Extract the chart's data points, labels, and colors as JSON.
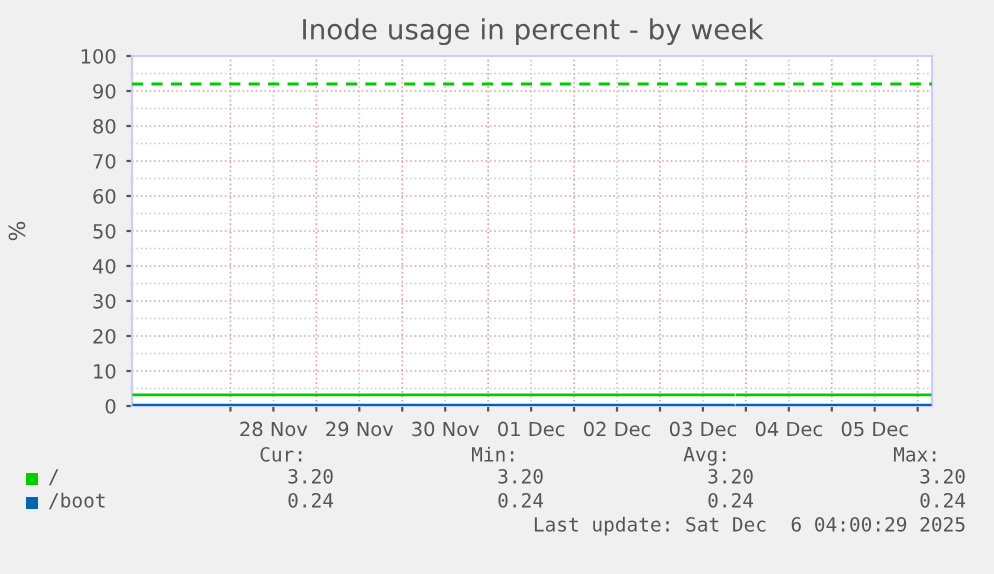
{
  "chart_data": {
    "type": "line",
    "title": "Inode usage in percent - by week",
    "ylabel": "%",
    "x": [
      "2025-11-26T21:00",
      "2025-12-03T20:30",
      "2025-12-03T21:00",
      "2025-12-03T21:30",
      "2025-12-06T03:30"
    ],
    "series": [
      {
        "name": "/",
        "color": "#00cc00",
        "values": [
          3.2,
          3.2,
          null,
          3.2,
          3.2
        ]
      },
      {
        "name": "/boot",
        "color": "#0066b3",
        "values": [
          0.24,
          0.24,
          null,
          0.24,
          0.24
        ]
      }
    ],
    "xlim": [
      "2025-11-26T20:30",
      "2025-12-06T04:00"
    ],
    "xticks": [
      {
        "value": "2025-11-28T00:00",
        "label": null
      },
      {
        "value": "2025-11-28T12:00",
        "label": "28 Nov"
      },
      {
        "value": "2025-11-29T00:00",
        "label": null
      },
      {
        "value": "2025-11-29T12:00",
        "label": "29 Nov"
      },
      {
        "value": "2025-11-30T00:00",
        "label": null
      },
      {
        "value": "2025-11-30T12:00",
        "label": "30 Nov"
      },
      {
        "value": "2025-12-01T00:00",
        "label": null
      },
      {
        "value": "2025-12-01T12:00",
        "label": "01 Dec"
      },
      {
        "value": "2025-12-02T00:00",
        "label": null
      },
      {
        "value": "2025-12-02T12:00",
        "label": "02 Dec"
      },
      {
        "value": "2025-12-03T00:00",
        "label": null
      },
      {
        "value": "2025-12-03T12:00",
        "label": "03 Dec"
      },
      {
        "value": "2025-12-04T00:00",
        "label": null
      },
      {
        "value": "2025-12-04T12:00",
        "label": "04 Dec"
      },
      {
        "value": "2025-12-05T00:00",
        "label": null
      },
      {
        "value": "2025-12-05T12:00",
        "label": "05 Dec"
      },
      {
        "value": "2025-12-06T00:00",
        "label": null
      }
    ],
    "ylim": [
      0,
      100
    ],
    "yticks": [
      0,
      10,
      20,
      30,
      40,
      50,
      60,
      70,
      80,
      90,
      100
    ],
    "ref_lines": [
      {
        "axis": "y",
        "value": 92,
        "color": "#00cc00",
        "line_style": "dashed"
      }
    ],
    "grid": true,
    "legend": "bottom",
    "marker": "none",
    "line_style": "solid",
    "annotations": [
      "Cur:",
      "Min:",
      "Avg:",
      "Max:",
      "3.20",
      "3.20",
      "3.20",
      "3.20",
      "0.24",
      "0.24",
      "0.24",
      "0.24",
      "Last update: Sat Dec  6 04:00:29 2025"
    ]
  }
}
